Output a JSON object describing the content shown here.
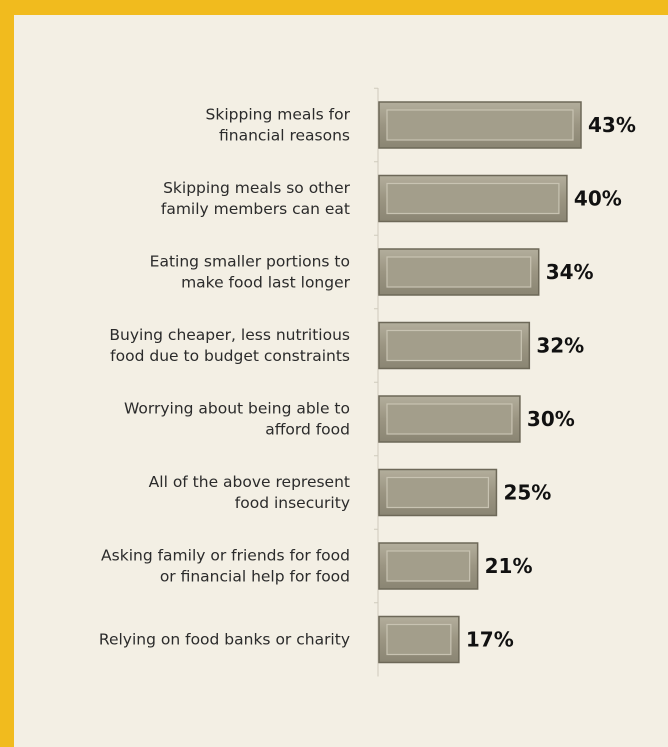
{
  "chart_data": {
    "type": "bar",
    "orientation": "horizontal",
    "categories": [
      [
        "Skipping meals for",
        "financial reasons"
      ],
      [
        "Skipping meals so other",
        "family members can eat"
      ],
      [
        "Eating smaller portions to",
        "make food last longer"
      ],
      [
        "Buying cheaper, less nutritious",
        "food due to budget constraints"
      ],
      [
        "Worrying about being able to",
        "afford food"
      ],
      [
        "All of the above represent",
        "food insecurity"
      ],
      [
        "Asking family or friends for food",
        "or financial help for food"
      ],
      [
        "Relying on food banks or charity"
      ]
    ],
    "values": [
      43,
      40,
      34,
      32,
      30,
      25,
      21,
      17
    ],
    "value_labels": [
      "43%",
      "40%",
      "34%",
      "32%",
      "30%",
      "25%",
      "21%",
      "17%"
    ],
    "title": "",
    "xlabel": "",
    "ylabel": "",
    "xlim": [
      0,
      43
    ],
    "grid": false,
    "legend": "none",
    "colors": {
      "bar_fill": "#9b9582",
      "bar_highlight": "#c8c3b2",
      "bar_shadow": "#6d6858",
      "background": "#f3efe4",
      "frame": "#f1bb1e"
    }
  }
}
